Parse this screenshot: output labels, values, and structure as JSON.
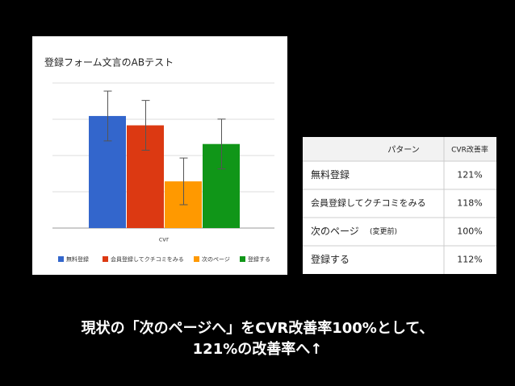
{
  "chart_data": {
    "type": "bar",
    "title": "登録フォーム文言のABテスト",
    "x_label": "cvr",
    "categories": [
      "無料登録",
      "会員登録してクチコミをみる",
      "次のページ",
      "登録する"
    ],
    "values": [
      121,
      118,
      100,
      112
    ],
    "errors": [
      8,
      8,
      7.5,
      8
    ],
    "colors": [
      "#3366cc",
      "#dc3912",
      "#ff9900",
      "#109618"
    ],
    "ylim": [
      85,
      131.6
    ],
    "grid": true
  },
  "table": {
    "header": [
      "パターン",
      "CVR改善率"
    ],
    "rows": [
      [
        "無料登録",
        "121%"
      ],
      [
        "会員登録してクチコミをみる",
        "118%"
      ],
      [
        "次のページ",
        "100%"
      ],
      [
        "登録する",
        "112%"
      ]
    ],
    "note": "(変更前)"
  },
  "caption": [
    "現状の「次のページへ」をCVR改善率100%として、",
    "121%の改善率へ↑"
  ]
}
